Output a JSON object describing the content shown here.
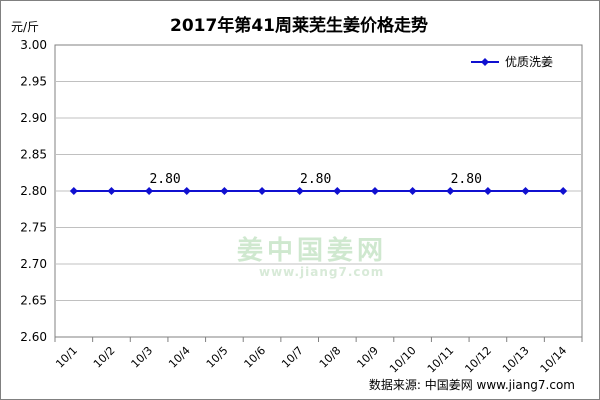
{
  "chart_data": {
    "type": "line",
    "title": "2017年第41周莱芜生姜价格走势",
    "unit_label": "元/斤",
    "categories": [
      "10/1",
      "10/2",
      "10/3",
      "10/4",
      "10/5",
      "10/6",
      "10/7",
      "10/8",
      "10/9",
      "10/10",
      "10/11",
      "10/12",
      "10/13",
      "10/14"
    ],
    "series": [
      {
        "name": "优质洗姜",
        "color": "#1010d0",
        "values": [
          2.8,
          2.8,
          2.8,
          2.8,
          2.8,
          2.8,
          2.8,
          2.8,
          2.8,
          2.8,
          2.8,
          2.8,
          2.8,
          2.8
        ]
      }
    ],
    "ylim": [
      2.6,
      3.0
    ],
    "yticks": [
      "3.00",
      "2.95",
      "2.90",
      "2.85",
      "2.80",
      "2.75",
      "2.70",
      "2.65",
      "2.60"
    ],
    "ytick_values": [
      3.0,
      2.95,
      2.9,
      2.85,
      2.8,
      2.75,
      2.7,
      2.65,
      2.6
    ],
    "data_labels": [
      {
        "index": 2,
        "text": "2.80"
      },
      {
        "index": 6,
        "text": "2.80"
      },
      {
        "index": 10,
        "text": "2.80"
      }
    ],
    "grid": true,
    "legend_position": "top-right"
  },
  "watermark": {
    "name": "姜中国姜网",
    "url": "www.jiang7.com"
  },
  "source_text": "数据来源: 中国姜网 www.jiang7.com"
}
